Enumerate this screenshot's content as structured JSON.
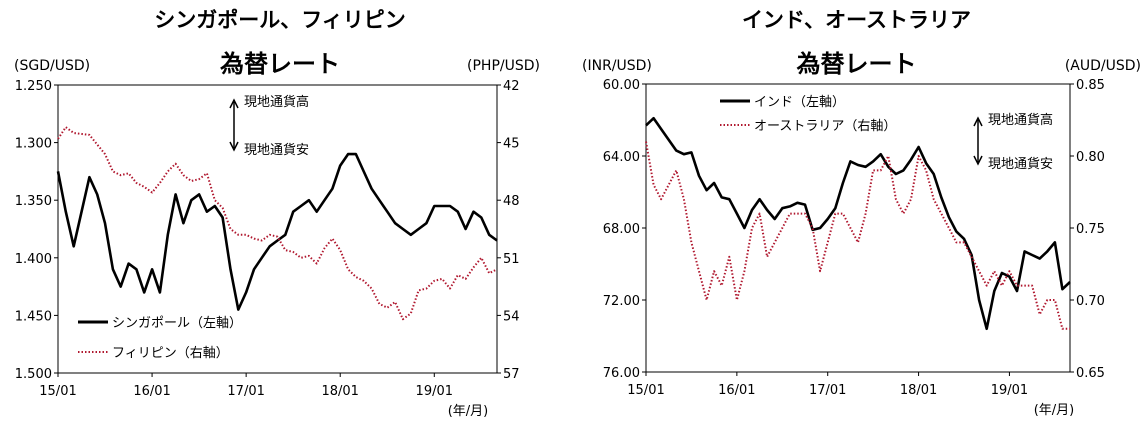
{
  "charts": [
    {
      "id": "left",
      "title_line1": "シンガポール、フィリピン",
      "title_line2": "為替レート",
      "unit_left": "(SGD/USD)",
      "unit_right": "(PHP/USD)",
      "x_unit": "(年/月)",
      "annotation_up": "現地通貨高",
      "annotation_down": "現地通貨安",
      "yleft_ticks": [
        "1.250",
        "1.300",
        "1.350",
        "1.400",
        "1.450",
        "1.500"
      ],
      "yright_ticks": [
        "42",
        "45",
        "48",
        "51",
        "54",
        "57"
      ],
      "x_ticks": [
        "15/01",
        "16/01",
        "17/01",
        "18/01",
        "19/01"
      ],
      "legend": [
        "シンガポール（左軸）",
        "フィリピン（右軸）"
      ]
    },
    {
      "id": "right",
      "title_line1": "インド、オーストラリア",
      "title_line2": "為替レート",
      "unit_left": "(INR/USD)",
      "unit_right": "(AUD/USD)",
      "x_unit": "(年/月)",
      "annotation_up": "現地通貨高",
      "annotation_down": "現地通貨安",
      "yleft_ticks": [
        "60.00",
        "64.00",
        "68.00",
        "72.00",
        "76.00"
      ],
      "yright_ticks": [
        "0.85",
        "0.80",
        "0.75",
        "0.70",
        "0.65"
      ],
      "x_ticks": [
        "15/01",
        "16/01",
        "17/01",
        "18/01",
        "19/01"
      ],
      "legend": [
        "インド（左軸）",
        "オーストラリア（右軸）"
      ]
    }
  ],
  "chart_data": [
    {
      "type": "line",
      "x_range": [
        "2015-01",
        "2019-09"
      ],
      "y_left": {
        "inverted": true,
        "range": [
          1.25,
          1.5
        ]
      },
      "y_right": {
        "inverted": true,
        "range": [
          42,
          57
        ]
      },
      "series": [
        {
          "name": "シンガポール（左軸）",
          "axis": "left",
          "color": "#000000",
          "style": "solid",
          "x": [
            "2015-01",
            "2015-02",
            "2015-03",
            "2015-05",
            "2015-06",
            "2015-07",
            "2015-08",
            "2015-09",
            "2015-10",
            "2015-11",
            "2015-12",
            "2016-01",
            "2016-02",
            "2016-03",
            "2016-04",
            "2016-05",
            "2016-06",
            "2016-07",
            "2016-08",
            "2016-09",
            "2016-10",
            "2016-11",
            "2016-12",
            "2017-01",
            "2017-02",
            "2017-03",
            "2017-04",
            "2017-05",
            "2017-06",
            "2017-07",
            "2017-08",
            "2017-09",
            "2017-10",
            "2017-11",
            "2017-12",
            "2018-01",
            "2018-02",
            "2018-03",
            "2018-04",
            "2018-05",
            "2018-06",
            "2018-07",
            "2018-08",
            "2018-09",
            "2018-10",
            "2018-11",
            "2018-12",
            "2019-01",
            "2019-02",
            "2019-03",
            "2019-04",
            "2019-05",
            "2019-06",
            "2019-07",
            "2019-08",
            "2019-09"
          ],
          "values": [
            1.325,
            1.36,
            1.39,
            1.33,
            1.345,
            1.37,
            1.41,
            1.425,
            1.405,
            1.41,
            1.43,
            1.41,
            1.43,
            1.38,
            1.345,
            1.37,
            1.35,
            1.345,
            1.36,
            1.355,
            1.365,
            1.41,
            1.445,
            1.43,
            1.41,
            1.4,
            1.39,
            1.385,
            1.38,
            1.36,
            1.355,
            1.35,
            1.36,
            1.35,
            1.34,
            1.32,
            1.31,
            1.31,
            1.325,
            1.34,
            1.35,
            1.36,
            1.37,
            1.375,
            1.38,
            1.375,
            1.37,
            1.355,
            1.355,
            1.355,
            1.36,
            1.375,
            1.36,
            1.365,
            1.38,
            1.385
          ]
        },
        {
          "name": "フィリピン（右軸）",
          "axis": "right",
          "color": "#b0182f",
          "style": "dotted",
          "x": [
            "2015-01",
            "2015-02",
            "2015-03",
            "2015-05",
            "2015-06",
            "2015-07",
            "2015-08",
            "2015-09",
            "2015-10",
            "2015-11",
            "2015-12",
            "2016-01",
            "2016-02",
            "2016-03",
            "2016-04",
            "2016-05",
            "2016-06",
            "2016-07",
            "2016-08",
            "2016-09",
            "2016-10",
            "2016-11",
            "2016-12",
            "2017-01",
            "2017-02",
            "2017-03",
            "2017-04",
            "2017-05",
            "2017-06",
            "2017-07",
            "2017-08",
            "2017-09",
            "2017-10",
            "2017-11",
            "2017-12",
            "2018-01",
            "2018-02",
            "2018-03",
            "2018-04",
            "2018-05",
            "2018-06",
            "2018-07",
            "2018-08",
            "2018-09",
            "2018-10",
            "2018-11",
            "2018-12",
            "2019-01",
            "2019-02",
            "2019-03",
            "2019-04",
            "2019-05",
            "2019-06",
            "2019-07",
            "2019-08",
            "2019-09"
          ],
          "values": [
            44.8,
            44.2,
            44.5,
            44.6,
            45.1,
            45.6,
            46.5,
            46.7,
            46.6,
            47.1,
            47.3,
            47.6,
            47.1,
            46.5,
            46.1,
            46.7,
            47.0,
            46.9,
            46.6,
            48.0,
            48.4,
            49.5,
            49.8,
            49.8,
            50.0,
            50.1,
            49.8,
            49.9,
            50.6,
            50.7,
            51.0,
            50.9,
            51.3,
            50.5,
            50.0,
            50.6,
            51.6,
            52.0,
            52.2,
            52.6,
            53.4,
            53.6,
            53.3,
            54.2,
            53.9,
            52.7,
            52.6,
            52.2,
            52.1,
            52.6,
            51.9,
            52.1,
            51.5,
            51.0,
            51.8,
            51.6
          ]
        }
      ]
    },
    {
      "type": "line",
      "x_range": [
        "2015-01",
        "2019-09"
      ],
      "y_left": {
        "inverted": true,
        "range": [
          60,
          76
        ]
      },
      "y_right": {
        "inverted": false,
        "range": [
          0.65,
          0.85
        ]
      },
      "series": [
        {
          "name": "インド（左軸）",
          "axis": "left",
          "color": "#000000",
          "style": "solid",
          "x": [
            "2015-01",
            "2015-02",
            "2015-03",
            "2015-05",
            "2015-06",
            "2015-07",
            "2015-08",
            "2015-09",
            "2015-10",
            "2015-11",
            "2015-12",
            "2016-01",
            "2016-02",
            "2016-03",
            "2016-04",
            "2016-05",
            "2016-06",
            "2016-07",
            "2016-08",
            "2016-09",
            "2016-10",
            "2016-11",
            "2016-12",
            "2017-01",
            "2017-02",
            "2017-03",
            "2017-04",
            "2017-05",
            "2017-06",
            "2017-07",
            "2017-08",
            "2017-09",
            "2017-10",
            "2017-11",
            "2017-12",
            "2018-01",
            "2018-02",
            "2018-03",
            "2018-04",
            "2018-05",
            "2018-06",
            "2018-07",
            "2018-08",
            "2018-09",
            "2018-10",
            "2018-11",
            "2018-12",
            "2019-01",
            "2019-02",
            "2019-03",
            "2019-04",
            "2019-05",
            "2019-06",
            "2019-07",
            "2019-08",
            "2019-09"
          ],
          "values": [
            62.3,
            61.9,
            62.5,
            63.7,
            63.9,
            63.8,
            65.1,
            65.9,
            65.5,
            66.3,
            66.4,
            67.2,
            68.0,
            67.0,
            66.4,
            67.0,
            67.5,
            66.9,
            66.8,
            66.6,
            66.7,
            68.1,
            68.0,
            67.5,
            66.9,
            65.5,
            64.3,
            64.5,
            64.6,
            64.3,
            63.9,
            64.6,
            65.0,
            64.8,
            64.2,
            63.5,
            64.4,
            65.0,
            66.3,
            67.4,
            68.2,
            68.6,
            69.5,
            72.0,
            73.6,
            71.5,
            70.5,
            70.7,
            71.5,
            69.3,
            69.5,
            69.7,
            69.3,
            68.8,
            71.4,
            71.0
          ]
        },
        {
          "name": "オーストラリア（右軸）",
          "axis": "right",
          "color": "#b0182f",
          "style": "dotted",
          "x": [
            "2015-01",
            "2015-02",
            "2015-03",
            "2015-05",
            "2015-06",
            "2015-07",
            "2015-08",
            "2015-09",
            "2015-10",
            "2015-11",
            "2015-12",
            "2016-01",
            "2016-02",
            "2016-03",
            "2016-04",
            "2016-05",
            "2016-06",
            "2016-07",
            "2016-08",
            "2016-09",
            "2016-10",
            "2016-11",
            "2016-12",
            "2017-01",
            "2017-02",
            "2017-03",
            "2017-04",
            "2017-05",
            "2017-06",
            "2017-07",
            "2017-08",
            "2017-09",
            "2017-10",
            "2017-11",
            "2017-12",
            "2018-01",
            "2018-02",
            "2018-03",
            "2018-04",
            "2018-05",
            "2018-06",
            "2018-07",
            "2018-08",
            "2018-09",
            "2018-10",
            "2018-11",
            "2018-12",
            "2019-01",
            "2019-02",
            "2019-03",
            "2019-04",
            "2019-05",
            "2019-06",
            "2019-07",
            "2019-08",
            "2019-09"
          ],
          "values": [
            0.81,
            0.78,
            0.77,
            0.79,
            0.77,
            0.74,
            0.72,
            0.7,
            0.72,
            0.71,
            0.73,
            0.7,
            0.72,
            0.75,
            0.76,
            0.73,
            0.74,
            0.75,
            0.76,
            0.76,
            0.76,
            0.75,
            0.72,
            0.74,
            0.76,
            0.76,
            0.75,
            0.74,
            0.76,
            0.79,
            0.79,
            0.8,
            0.77,
            0.76,
            0.77,
            0.8,
            0.79,
            0.77,
            0.76,
            0.75,
            0.74,
            0.74,
            0.73,
            0.72,
            0.71,
            0.72,
            0.71,
            0.72,
            0.71,
            0.71,
            0.71,
            0.69,
            0.7,
            0.7,
            0.68,
            0.68
          ]
        }
      ]
    }
  ]
}
